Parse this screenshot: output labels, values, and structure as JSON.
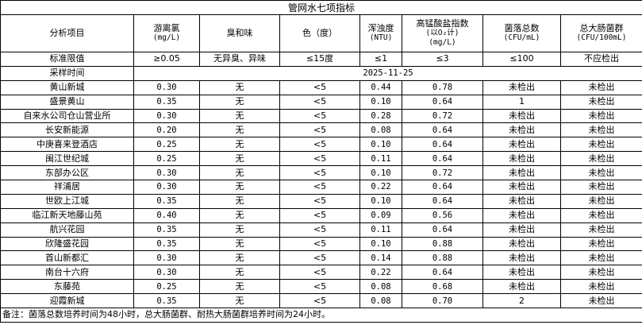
{
  "title": "管网水七项指标",
  "headers": [
    {
      "label": "分析项目",
      "unit": ""
    },
    {
      "label": "游离氯",
      "unit": "(mg/L)"
    },
    {
      "label": "臭和味",
      "unit": ""
    },
    {
      "label": "色（度）",
      "unit": ""
    },
    {
      "label": "浑浊度",
      "unit": "(NTU)"
    },
    {
      "label": "高锰酸盐指数",
      "unit": "(以O₂计)",
      "unit2": "(mg/L)"
    },
    {
      "label": "菌落总数",
      "unit": "(CFU/mL)"
    },
    {
      "label": "总大肠菌群",
      "unit": "(CFU/100mL)"
    }
  ],
  "standard": [
    "标准限值",
    "≥0.05",
    "无异臭、异味",
    "≤15度",
    "≤1",
    "≤3",
    "≤100",
    "不应检出"
  ],
  "sampling": {
    "label": "采样时间",
    "value": "2025-11-25"
  },
  "rows": [
    [
      "黄山新城",
      "0.30",
      "无",
      "<5",
      "0.44",
      "0.78",
      "未检出",
      "未检出"
    ],
    [
      "盛景黄山",
      "0.35",
      "无",
      "<5",
      "0.10",
      "0.64",
      "1",
      "未检出"
    ],
    [
      "自来水公司仓山营业所",
      "0.30",
      "无",
      "<5",
      "0.28",
      "0.72",
      "未检出",
      "未检出"
    ],
    [
      "长安新能源",
      "0.20",
      "无",
      "<5",
      "0.08",
      "0.64",
      "未检出",
      "未检出"
    ],
    [
      "中庚喜来登酒店",
      "0.25",
      "无",
      "<5",
      "0.10",
      "0.64",
      "未检出",
      "未检出"
    ],
    [
      "闽江世纪城",
      "0.25",
      "无",
      "<5",
      "0.11",
      "0.64",
      "未检出",
      "未检出"
    ],
    [
      "东部办公区",
      "0.30",
      "无",
      "<5",
      "0.10",
      "0.72",
      "未检出",
      "未检出"
    ],
    [
      "祥浦居",
      "0.30",
      "无",
      "<5",
      "0.22",
      "0.64",
      "未检出",
      "未检出"
    ],
    [
      "世欧上江城",
      "0.35",
      "无",
      "<5",
      "0.10",
      "0.64",
      "未检出",
      "未检出"
    ],
    [
      "临江新天地藤山苑",
      "0.40",
      "无",
      "<5",
      "0.09",
      "0.56",
      "未检出",
      "未检出"
    ],
    [
      "航兴花园",
      "0.35",
      "无",
      "<5",
      "0.11",
      "0.64",
      "未检出",
      "未检出"
    ],
    [
      "欣隆盛花园",
      "0.35",
      "无",
      "<5",
      "0.10",
      "0.88",
      "未检出",
      "未检出"
    ],
    [
      "首山新都汇",
      "0.30",
      "无",
      "<5",
      "0.14",
      "0.88",
      "未检出",
      "未检出"
    ],
    [
      "南台十六府",
      "0.30",
      "无",
      "<5",
      "0.22",
      "0.64",
      "未检出",
      "未检出"
    ],
    [
      "东藤苑",
      "0.25",
      "无",
      "<5",
      "0.08",
      "0.68",
      "未检出",
      "未检出"
    ],
    [
      "迎霞新城",
      "0.35",
      "无",
      "<5",
      "0.08",
      "0.70",
      "2",
      "未检出"
    ]
  ],
  "note": "备注：菌落总数培养时间为48小时，总大肠菌群、耐热大肠菌群培养时间为24小时。"
}
